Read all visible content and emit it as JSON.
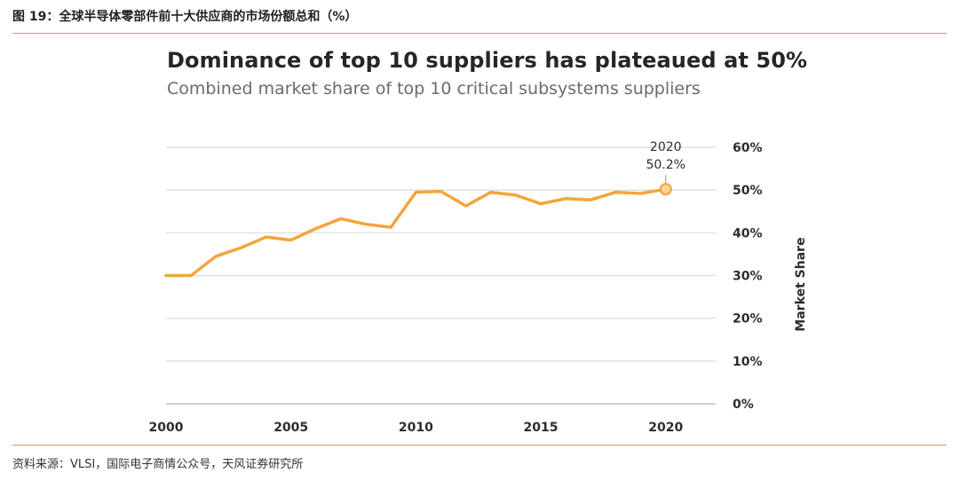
{
  "figure": {
    "caption": "图 19：全球半导体零部件前十大供应商的市场份额总和（%）",
    "source": "资料来源：VLSI，国际电子商情公众号，天风证券研究所"
  },
  "colors": {
    "line": "#F4A53C",
    "grid": "#d9d9d9",
    "rule": "#e59a4a"
  },
  "chart_data": {
    "type": "line",
    "title": "Dominance of top 10 suppliers has plateaued at 50%",
    "subtitle": "Combined market share of top 10 critical subsystems suppliers",
    "xlabel": "",
    "ylabel": "Market Share",
    "xlim": [
      2000,
      2022
    ],
    "ylim": [
      0,
      60
    ],
    "x_ticks": [
      2000,
      2005,
      2010,
      2015,
      2020
    ],
    "y_ticks": [
      "0%",
      "10%",
      "20%",
      "30%",
      "40%",
      "50%",
      "60%"
    ],
    "y_axis_side": "right",
    "grid": true,
    "series": [
      {
        "name": "Combined market share",
        "x": [
          2000,
          2001,
          2002,
          2003,
          2004,
          2005,
          2006,
          2007,
          2008,
          2009,
          2010,
          2011,
          2012,
          2013,
          2014,
          2015,
          2016,
          2017,
          2018,
          2019,
          2020
        ],
        "values": [
          30.0,
          30.0,
          34.5,
          36.5,
          39.0,
          38.3,
          41.0,
          43.3,
          42.0,
          41.3,
          49.5,
          49.7,
          46.3,
          49.5,
          48.8,
          46.8,
          48.0,
          47.7,
          49.5,
          49.2,
          50.2
        ]
      }
    ],
    "annotation": {
      "x": 2020,
      "value": 50.2,
      "year_label": "2020",
      "value_label": "50.2%"
    }
  }
}
